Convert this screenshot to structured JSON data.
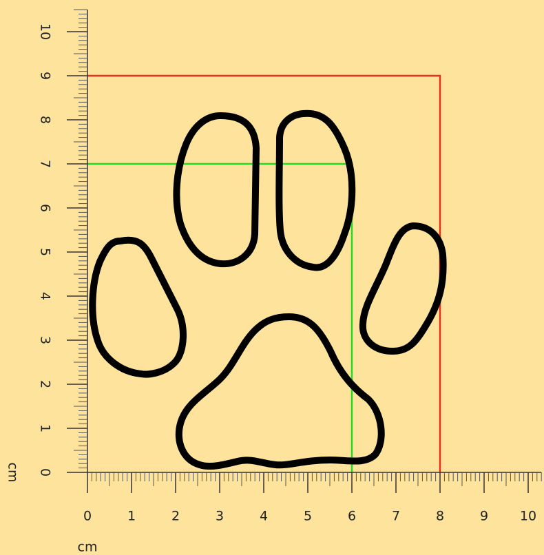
{
  "axes": {
    "x_unit": "cm",
    "y_unit": "cm",
    "xlim": [
      0,
      10.3
    ],
    "ylim": [
      0,
      10.5
    ],
    "ticks": [
      0,
      1,
      2,
      3,
      4,
      5,
      6,
      7,
      8,
      9,
      10
    ],
    "minor_divisions": 10
  },
  "boxes": [
    {
      "color": "#e8301c",
      "width": 8,
      "height": 9
    },
    {
      "color": "#22dd22",
      "width": 6,
      "height": 7
    }
  ]
}
